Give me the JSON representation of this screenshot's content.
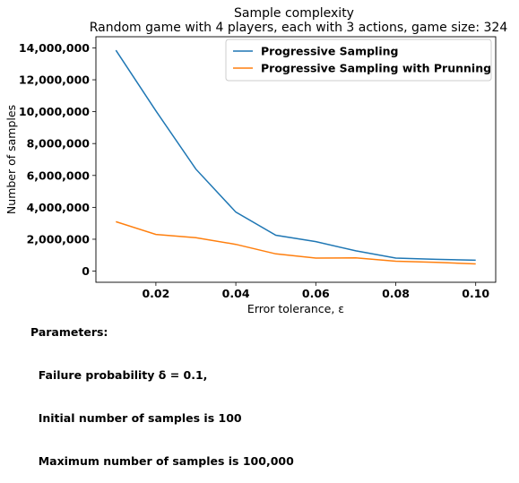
{
  "chart_data": {
    "type": "line",
    "title": "Sample complexity",
    "subtitle": "Random game with 4 players, each with 3 actions, game size: 324",
    "xlabel": "Error tolerance, ε",
    "ylabel": "Number of samples",
    "xlim": [
      0.005,
      0.105
    ],
    "ylim": [
      -700000,
      14700000
    ],
    "xticks": [
      0.02,
      0.04,
      0.06,
      0.08,
      0.1
    ],
    "xtick_labels": [
      "0.02",
      "0.04",
      "0.06",
      "0.08",
      "0.10"
    ],
    "yticks": [
      0,
      2000000,
      4000000,
      6000000,
      8000000,
      10000000,
      12000000,
      14000000
    ],
    "ytick_labels": [
      "0",
      "2,000,000",
      "4,000,000",
      "6,000,000",
      "8,000,000",
      "10,000,000",
      "12,000,000",
      "14,000,000"
    ],
    "grid": false,
    "legend_position": "top-right",
    "x": [
      0.01,
      0.02,
      0.03,
      0.04,
      0.05,
      0.06,
      0.07,
      0.08,
      0.09,
      0.1
    ],
    "series": [
      {
        "name": "Progressive Sampling",
        "color": "#1f77b4",
        "values": [
          13850000,
          10050000,
          6400000,
          3700000,
          2250000,
          1850000,
          1270000,
          820000,
          740000,
          680000
        ]
      },
      {
        "name": "Progressive Sampling with Prunning",
        "color": "#ff7f0e",
        "values": [
          3100000,
          2300000,
          2100000,
          1680000,
          1080000,
          820000,
          830000,
          620000,
          550000,
          450000
        ]
      }
    ]
  },
  "parameters": {
    "heading": "Parameters:",
    "lines": [
      "  Failure probability δ = 0.1,",
      "  Initial number of samples is 100",
      "  Maximum number of samples is 100,000"
    ]
  }
}
